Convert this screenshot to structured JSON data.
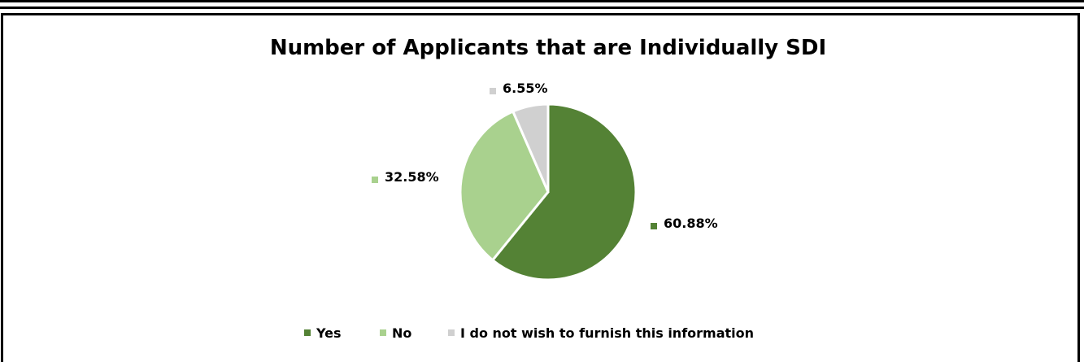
{
  "chart_data": {
    "type": "pie",
    "title": "Number of Applicants that are Individually SDI",
    "categories": [
      "Yes",
      "No",
      "I do not wish to furnish this information"
    ],
    "values": [
      60.88,
      32.58,
      6.55
    ],
    "data_labels": [
      "60.88%",
      "32.58%",
      "6.55%"
    ],
    "colors": [
      "#548235",
      "#a9d18e",
      "#d0d0d0"
    ],
    "legend_position": "bottom"
  }
}
